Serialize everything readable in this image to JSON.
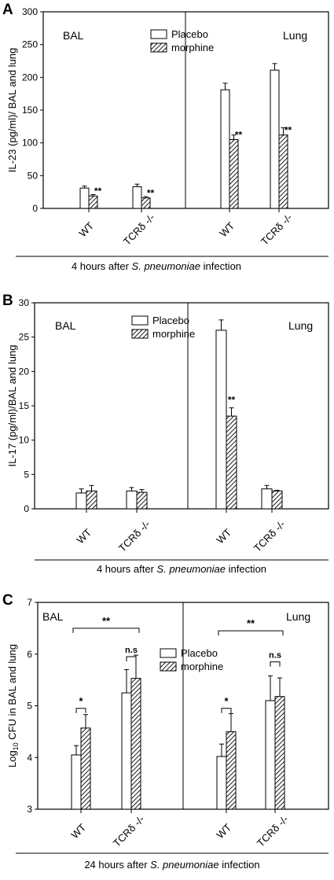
{
  "chart_data": [
    {
      "panel": "A",
      "type": "bar",
      "ylabel": "IL-23 (pg/ml)/ BAL and lung",
      "ylim": [
        0,
        300
      ],
      "yticks": [
        "0",
        "50",
        "100",
        "150",
        "200",
        "250",
        "300"
      ],
      "region_labels": [
        "BAL",
        "Lung"
      ],
      "categories": [
        "WT",
        "TCRδ -/-",
        "WT",
        "TCRδ -/-"
      ],
      "series": [
        {
          "name": "Placebo",
          "pattern": "open",
          "values": [
            31,
            33,
            181,
            211
          ],
          "errors": [
            3,
            4,
            10,
            10
          ]
        },
        {
          "name": "morphine",
          "pattern": "hatched",
          "values": [
            19,
            16,
            105,
            112
          ],
          "errors": [
            2,
            2,
            7,
            11
          ]
        }
      ],
      "significance": [
        {
          "category": 0,
          "label": "**"
        },
        {
          "category": 1,
          "label": "**"
        },
        {
          "category": 2,
          "label": "**"
        },
        {
          "category": 3,
          "label": "**"
        }
      ],
      "brackets": [],
      "legend_position": "top-center",
      "footer": {
        "prefix": "4 hours after ",
        "italic": "S. pneumoniae",
        "suffix": " infection"
      }
    },
    {
      "panel": "B",
      "type": "bar",
      "ylabel": "IL-17 (pg/ml)/BAL and lung",
      "ylim": [
        0,
        30
      ],
      "yticks": [
        "0",
        "5",
        "10",
        "15",
        "20",
        "25",
        "30"
      ],
      "region_labels": [
        "BAL",
        "Lung"
      ],
      "categories": [
        "WT",
        "TCRδ -/-",
        "WT",
        "TCRδ -/-"
      ],
      "series": [
        {
          "name": "Placebo",
          "pattern": "open",
          "values": [
            2.3,
            2.6,
            26.0,
            2.9
          ],
          "errors": [
            0.6,
            0.5,
            1.5,
            0.5
          ]
        },
        {
          "name": "morphine",
          "pattern": "hatched",
          "values": [
            2.6,
            2.4,
            13.5,
            2.6
          ],
          "errors": [
            0.8,
            0.4,
            1.2,
            0.1
          ]
        }
      ],
      "significance": [
        {
          "category": 2,
          "label": "**"
        }
      ],
      "brackets": [],
      "legend_position": "top-center",
      "footer": {
        "prefix": "4 hours after ",
        "italic": "S. pneumoniae",
        "suffix": " infection"
      }
    },
    {
      "panel": "C",
      "type": "bar",
      "ylabel": "Log10 CFU in BAL and lung",
      "ylim": [
        3,
        7
      ],
      "yticks": [
        "3",
        "4",
        "5",
        "6",
        "7"
      ],
      "region_labels": [
        "BAL",
        "Lung"
      ],
      "categories": [
        "WT",
        "TCRδ -/-",
        "WT",
        "TCRδ -/-"
      ],
      "series": [
        {
          "name": "Placebo",
          "pattern": "open",
          "values": [
            4.05,
            5.25,
            4.02,
            5.1
          ],
          "errors": [
            0.18,
            0.45,
            0.24,
            0.48
          ]
        },
        {
          "name": "morphine",
          "pattern": "hatched",
          "values": [
            4.57,
            5.53,
            4.5,
            5.18
          ],
          "errors": [
            0.26,
            0.45,
            0.35,
            0.36
          ]
        }
      ],
      "significance": [],
      "brackets": [
        {
          "type": "within",
          "category": 0,
          "label": "*",
          "level": 4.95
        },
        {
          "type": "within",
          "category": 1,
          "label": "n.s",
          "level": 5.95
        },
        {
          "type": "within",
          "category": 2,
          "label": "*",
          "level": 4.95
        },
        {
          "type": "within",
          "category": 3,
          "label": "n.s",
          "level": 5.85
        },
        {
          "type": "between",
          "from": 0,
          "to": 1,
          "label": "**",
          "level": 6.5
        },
        {
          "type": "between",
          "from": 2,
          "to": 3,
          "label": "**",
          "level": 6.45
        }
      ],
      "legend_position": "center",
      "footer": {
        "prefix": "24 hours after ",
        "italic": "S. pneumoniae",
        "suffix": " infection"
      }
    }
  ]
}
